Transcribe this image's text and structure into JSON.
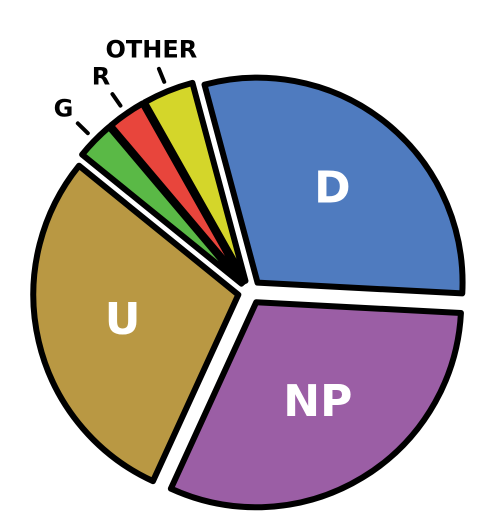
{
  "chart_data": {
    "type": "pie",
    "categories": [
      "D",
      "NP",
      "U",
      "G",
      "R",
      "OTHER"
    ],
    "values": [
      30,
      31,
      29,
      3,
      3,
      4
    ],
    "colors": [
      "#4f7bbf",
      "#9b5ea5",
      "#b99843",
      "#5ab946",
      "#e8453c",
      "#d4d62a"
    ]
  }
}
